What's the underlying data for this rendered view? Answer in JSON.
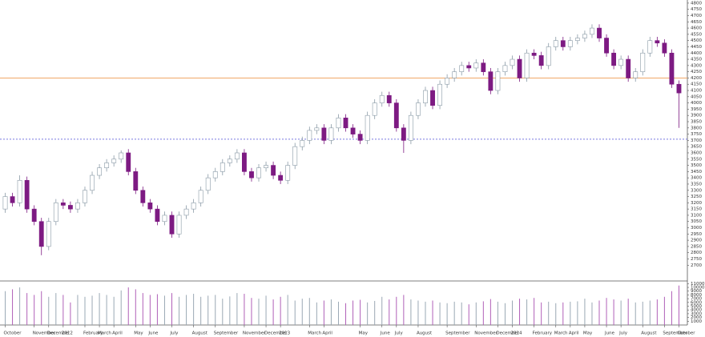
{
  "chart_data": {
    "type": "candlestick",
    "categories": [
      "October",
      null,
      null,
      null,
      "November",
      null,
      "December",
      null,
      "2012",
      null,
      null,
      "February",
      null,
      "March",
      null,
      "April",
      null,
      null,
      "May",
      null,
      "June",
      null,
      null,
      "July",
      null,
      null,
      "August",
      null,
      null,
      "September",
      null,
      null,
      null,
      "November",
      null,
      null,
      "December",
      null,
      "2013",
      null,
      null,
      null,
      "March",
      null,
      "April",
      null,
      null,
      null,
      null,
      "May",
      null,
      null,
      "June",
      null,
      "July",
      null,
      null,
      "August",
      null,
      null,
      null,
      "September",
      null,
      null,
      null,
      "November",
      null,
      null,
      "December",
      null,
      "2014",
      null,
      null,
      "February",
      null,
      null,
      "March",
      null,
      "April",
      null,
      "May",
      null,
      null,
      "June",
      null,
      "July",
      null,
      null,
      "August",
      null,
      null,
      "September",
      null,
      "October"
    ],
    "open": [
      3150,
      3250,
      3200,
      3380,
      3150,
      3050,
      2850,
      3050,
      3200,
      3180,
      3150,
      3200,
      3300,
      3420,
      3480,
      3520,
      3550,
      3600,
      3450,
      3300,
      3200,
      3150,
      3050,
      3100,
      2950,
      3100,
      3150,
      3200,
      3300,
      3400,
      3450,
      3520,
      3550,
      3600,
      3450,
      3400,
      3480,
      3500,
      3420,
      3380,
      3500,
      3650,
      3700,
      3780,
      3800,
      3700,
      3800,
      3880,
      3800,
      3750,
      3700,
      3900,
      4000,
      4060,
      4000,
      3800,
      3700,
      3900,
      4000,
      4100,
      3980,
      4150,
      4200,
      4250,
      4300,
      4280,
      4320,
      4250,
      4100,
      4250,
      4300,
      4350,
      4200,
      4400,
      4380,
      4300,
      4450,
      4500,
      4450,
      4500,
      4520,
      4550,
      4600,
      4520,
      4400,
      4300,
      4350,
      4200,
      4250,
      4400,
      4500,
      4480,
      4400,
      4150
    ],
    "high": [
      3280,
      3280,
      3420,
      3410,
      3180,
      3080,
      3080,
      3230,
      3230,
      3210,
      3230,
      3330,
      3450,
      3510,
      3550,
      3580,
      3620,
      3630,
      3480,
      3330,
      3230,
      3180,
      3130,
      3130,
      3130,
      3180,
      3230,
      3330,
      3430,
      3480,
      3550,
      3580,
      3630,
      3630,
      3480,
      3510,
      3530,
      3530,
      3450,
      3530,
      3680,
      3730,
      3810,
      3830,
      3830,
      3830,
      3910,
      3910,
      3830,
      3780,
      3930,
      4030,
      4090,
      4090,
      4030,
      3830,
      3930,
      4030,
      4130,
      4130,
      4180,
      4230,
      4280,
      4330,
      4330,
      4350,
      4350,
      4280,
      4280,
      4330,
      4380,
      4380,
      4430,
      4430,
      4410,
      4480,
      4530,
      4530,
      4530,
      4550,
      4580,
      4630,
      4630,
      4550,
      4430,
      4380,
      4380,
      4280,
      4430,
      4530,
      4530,
      4510,
      4430,
      4180
    ],
    "low": [
      3120,
      3170,
      3170,
      3120,
      3020,
      2780,
      2820,
      3020,
      3150,
      3120,
      3120,
      3170,
      3270,
      3390,
      3450,
      3490,
      3520,
      3420,
      3270,
      3170,
      3120,
      3020,
      3020,
      2920,
      2920,
      3070,
      3120,
      3170,
      3270,
      3370,
      3420,
      3490,
      3520,
      3420,
      3370,
      3370,
      3450,
      3390,
      3350,
      3350,
      3470,
      3620,
      3670,
      3750,
      3670,
      3670,
      3770,
      3770,
      3720,
      3670,
      3670,
      3870,
      3970,
      3970,
      3770,
      3600,
      3670,
      3870,
      3970,
      3950,
      3950,
      4120,
      4170,
      4220,
      4250,
      4250,
      4220,
      4070,
      4070,
      4220,
      4270,
      4170,
      4170,
      4350,
      4270,
      4270,
      4420,
      4420,
      4420,
      4470,
      4490,
      4520,
      4490,
      4370,
      4270,
      4270,
      4170,
      4170,
      4220,
      4370,
      4450,
      4370,
      4120,
      3800
    ],
    "close": [
      3250,
      3200,
      3380,
      3150,
      3050,
      2850,
      3050,
      3200,
      3180,
      3150,
      3200,
      3300,
      3420,
      3480,
      3520,
      3550,
      3600,
      3450,
      3300,
      3200,
      3150,
      3050,
      3100,
      2950,
      3100,
      3150,
      3200,
      3300,
      3400,
      3450,
      3520,
      3550,
      3600,
      3450,
      3400,
      3480,
      3500,
      3420,
      3380,
      3500,
      3650,
      3700,
      3780,
      3800,
      3700,
      3800,
      3880,
      3800,
      3750,
      3700,
      3900,
      4000,
      4060,
      4000,
      3800,
      3700,
      3900,
      4000,
      4100,
      3980,
      4150,
      4200,
      4250,
      4300,
      4280,
      4320,
      4250,
      4100,
      4250,
      4300,
      4350,
      4200,
      4400,
      4380,
      4300,
      4450,
      4500,
      4450,
      4500,
      4520,
      4550,
      4600,
      4520,
      4400,
      4300,
      4350,
      4200,
      4250,
      4400,
      4500,
      4480,
      4400,
      4150,
      4080
    ],
    "volume": [
      9000,
      9500,
      10000,
      8500,
      8000,
      9000,
      7500,
      8500,
      8000,
      6000,
      8000,
      7500,
      7800,
      8500,
      8000,
      7500,
      9200,
      10000,
      9500,
      8500,
      8000,
      8200,
      7800,
      8500,
      7500,
      8000,
      8300,
      7500,
      7800,
      8000,
      7000,
      7600,
      8500,
      8300,
      7200,
      7000,
      7800,
      6800,
      7500,
      8000,
      6500,
      7000,
      7200,
      6000,
      6500,
      6800,
      6200,
      5800,
      6500,
      6700,
      6000,
      6400,
      7500,
      6800,
      7500,
      8000,
      6800,
      6500,
      6200,
      6500,
      6000,
      5800,
      6200,
      6000,
      5500,
      6000,
      6300,
      6900,
      6200,
      5800,
      6500,
      7000,
      6800,
      7200,
      6000,
      6200,
      5800,
      6000,
      6200,
      6300,
      7000,
      6000,
      6500,
      7200,
      6800,
      6500,
      7000,
      6000,
      6200,
      6500,
      6800,
      7500,
      9000,
      10500
    ],
    "up_color": "#ffffff",
    "up_edge": "#8a9aa6",
    "down_color": "#7d1a82",
    "wick_color": "#8a9aa6",
    "volume_up_color": "#9aa8b4",
    "volume_down_color": "#b060b8",
    "ylim": [
      2580,
      4825
    ],
    "yticks": [
      2700,
      2750,
      2800,
      2850,
      2900,
      2950,
      3000,
      3050,
      3100,
      3150,
      3200,
      3250,
      3300,
      3350,
      3400,
      3450,
      3500,
      3550,
      3600,
      3650,
      3700,
      3750,
      3800,
      3850,
      3900,
      3950,
      4000,
      4050,
      4100,
      4150,
      4200,
      4250,
      4300,
      4350,
      4400,
      4450,
      4500,
      4550,
      4600,
      4650,
      4700,
      4750,
      4800
    ],
    "volume_ylim": [
      0,
      11500
    ],
    "volume_ticks": [
      1000,
      2000,
      3000,
      4000,
      5000,
      6000,
      7000,
      8000,
      9000,
      10000,
      11000
    ],
    "levels": [
      {
        "value": 4200,
        "color": "#f0a868",
        "dashed": false
      },
      {
        "value": 3710,
        "color": "#7a7ae0",
        "dashed": true
      }
    ]
  }
}
